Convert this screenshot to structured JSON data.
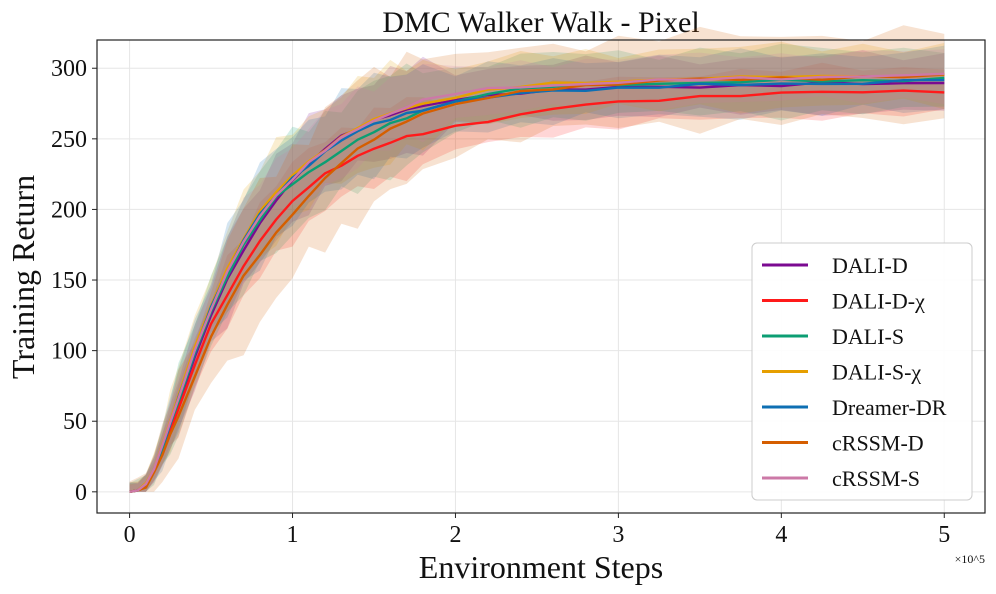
{
  "chart_data": {
    "type": "line",
    "title": "DMC Walker Walk - Pixel",
    "xlabel": "Environment Steps",
    "ylabel": "Training Return",
    "x_multiplier_label": "×10^5",
    "xlim": [
      -0.2,
      5.25
    ],
    "ylim": [
      -15,
      320
    ],
    "xticks": [
      0,
      1,
      2,
      3,
      4,
      5
    ],
    "xtick_labels": [
      "0",
      "1",
      "2",
      "3",
      "4",
      "5"
    ],
    "yticks": [
      0,
      50,
      100,
      150,
      200,
      250,
      300
    ],
    "ytick_labels": [
      "0",
      "50",
      "100",
      "150",
      "200",
      "250",
      "300"
    ],
    "grid": true,
    "legend_position": "lower-right",
    "x": [
      0,
      0.05,
      0.1,
      0.15,
      0.2,
      0.25,
      0.3,
      0.4,
      0.5,
      0.6,
      0.7,
      0.8,
      0.9,
      1.0,
      1.1,
      1.2,
      1.3,
      1.4,
      1.5,
      1.6,
      1.7,
      1.8,
      2.0,
      2.2,
      2.4,
      2.6,
      2.8,
      3.0,
      3.25,
      3.5,
      3.75,
      4.0,
      4.25,
      4.5,
      4.75,
      5.0
    ],
    "series": [
      {
        "name": "DALI-D",
        "color": "#7B0A91",
        "values": [
          0,
          1,
          5,
          15,
          30,
          45,
          62,
          95,
          125,
          150,
          172,
          190,
          207,
          220,
          232,
          243,
          252,
          258,
          263,
          267,
          270,
          273,
          278,
          281,
          283,
          284,
          285,
          286,
          287,
          287,
          288,
          288,
          289,
          289,
          289,
          290
        ],
        "band": 14
      },
      {
        "name": "DALI-D-χ",
        "color": "#FF1A1A",
        "values": [
          0,
          1,
          5,
          15,
          30,
          44,
          58,
          90,
          118,
          140,
          160,
          178,
          193,
          205,
          216,
          225,
          232,
          238,
          243,
          247,
          251,
          254,
          259,
          263,
          267,
          271,
          274,
          276,
          278,
          280,
          281,
          282,
          283,
          283,
          284,
          284
        ],
        "band": 12
      },
      {
        "name": "DALI-S",
        "color": "#0C9E73",
        "values": [
          0,
          1,
          5,
          16,
          31,
          47,
          64,
          97,
          128,
          153,
          175,
          193,
          208,
          218,
          226,
          234,
          242,
          249,
          255,
          260,
          265,
          270,
          277,
          282,
          285,
          287,
          288,
          289,
          289,
          290,
          290,
          291,
          291,
          291,
          292,
          293
        ],
        "band": 16
      },
      {
        "name": "DALI-S-χ",
        "color": "#E69F00",
        "values": [
          0,
          1,
          6,
          17,
          33,
          50,
          68,
          102,
          133,
          158,
          180,
          198,
          212,
          224,
          234,
          243,
          251,
          258,
          263,
          268,
          272,
          275,
          280,
          284,
          287,
          289,
          290,
          291,
          292,
          293,
          293,
          294,
          294,
          295,
          295,
          295
        ],
        "band": 15
      },
      {
        "name": "Dreamer-DR",
        "color": "#0E6FB3",
        "values": [
          0,
          1,
          5,
          16,
          31,
          48,
          66,
          100,
          131,
          156,
          178,
          196,
          210,
          222,
          232,
          241,
          249,
          255,
          260,
          264,
          268,
          271,
          276,
          279,
          282,
          284,
          285,
          286,
          287,
          288,
          288,
          289,
          289,
          290,
          291,
          292
        ],
        "band": 15
      },
      {
        "name": "cRSSM-D",
        "color": "#D55E00",
        "values": [
          0,
          1,
          4,
          13,
          26,
          40,
          54,
          82,
          110,
          133,
          152,
          168,
          183,
          197,
          210,
          222,
          233,
          242,
          250,
          257,
          263,
          268,
          274,
          279,
          283,
          286,
          288,
          289,
          291,
          292,
          292,
          293,
          293,
          294,
          294,
          295
        ],
        "band": 22
      },
      {
        "name": "cRSSM-S",
        "color": "#CC79A7",
        "values": [
          0,
          1,
          5,
          16,
          32,
          49,
          67,
          100,
          130,
          155,
          177,
          195,
          210,
          222,
          233,
          242,
          250,
          257,
          263,
          268,
          273,
          277,
          282,
          285,
          287,
          288,
          289,
          290,
          291,
          292,
          293,
          293,
          294,
          294,
          295,
          295
        ],
        "band": 12
      }
    ]
  }
}
